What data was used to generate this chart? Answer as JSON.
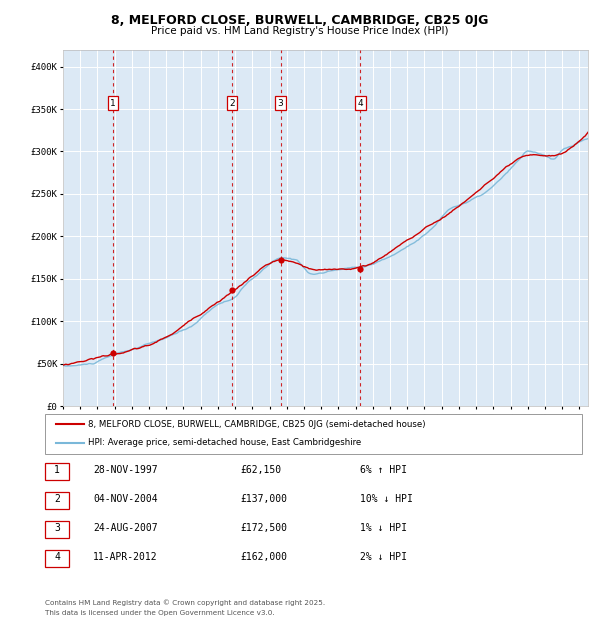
{
  "title_line1": "8, MELFORD CLOSE, BURWELL, CAMBRIDGE, CB25 0JG",
  "title_line2": "Price paid vs. HM Land Registry's House Price Index (HPI)",
  "legend_line1": "8, MELFORD CLOSE, BURWELL, CAMBRIDGE, CB25 0JG (semi-detached house)",
  "legend_line2": "HPI: Average price, semi-detached house, East Cambridgeshire",
  "footer1": "Contains HM Land Registry data © Crown copyright and database right 2025.",
  "footer2": "This data is licensed under the Open Government Licence v3.0.",
  "transactions": [
    {
      "num": 1,
      "date": "28-NOV-1997",
      "price": 62150,
      "rel": "6% ↑ HPI",
      "date_x": 1997.91
    },
    {
      "num": 2,
      "date": "04-NOV-2004",
      "price": 137000,
      "rel": "10% ↓ HPI",
      "date_x": 2004.84
    },
    {
      "num": 3,
      "date": "24-AUG-2007",
      "price": 172500,
      "rel": "1% ↓ HPI",
      "date_x": 2007.64
    },
    {
      "num": 4,
      "date": "11-APR-2012",
      "price": 162000,
      "rel": "2% ↓ HPI",
      "date_x": 2012.28
    }
  ],
  "plot_bg": "#dce9f5",
  "hpi_color": "#7ab8d9",
  "price_color": "#cc0000",
  "marker_color": "#cc0000",
  "vline_color": "#cc0000",
  "ylim": [
    0,
    420000
  ],
  "xlim_start": 1995.0,
  "xlim_end": 2025.5,
  "ytick_labels": [
    "£0",
    "£50K",
    "£100K",
    "£150K",
    "£200K",
    "£250K",
    "£300K",
    "£350K",
    "£400K"
  ],
  "ytick_vals": [
    0,
    50000,
    100000,
    150000,
    200000,
    250000,
    300000,
    350000,
    400000
  ]
}
